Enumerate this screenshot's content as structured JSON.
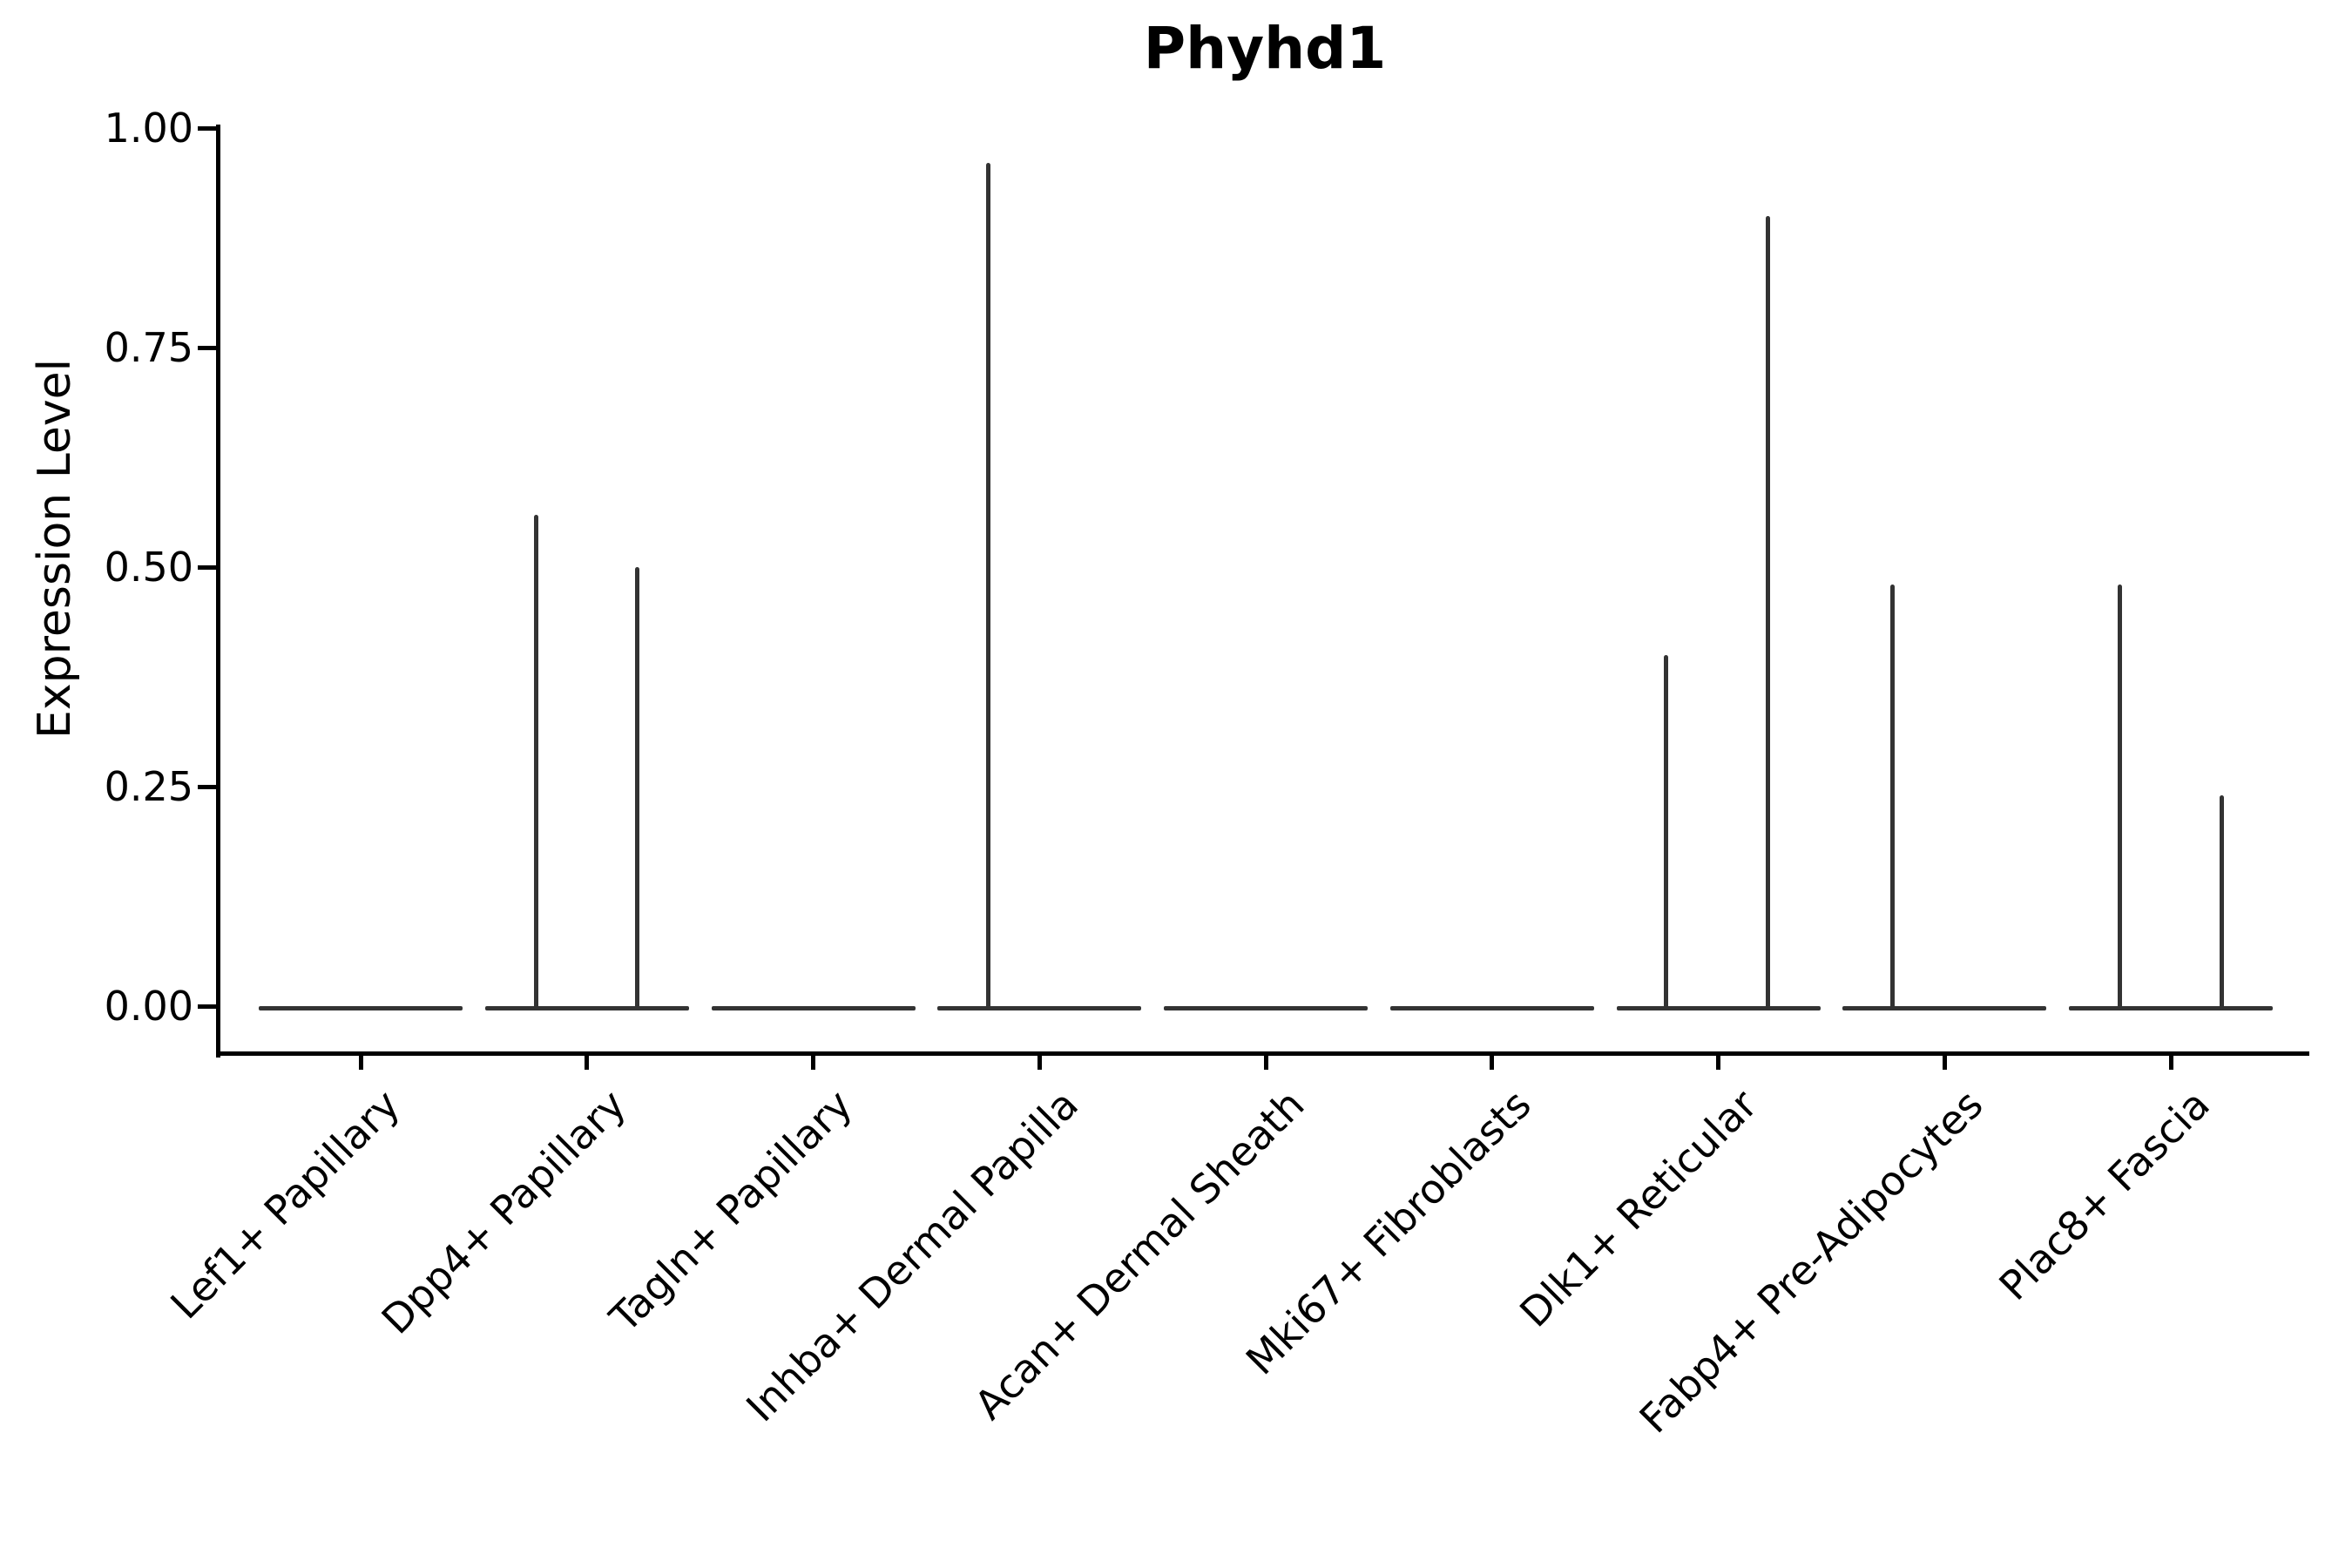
{
  "chart_data": {
    "type": "violin",
    "title": "Phyhd1",
    "xlabel": "",
    "ylabel": "Expression Level",
    "ylim": [
      0.0,
      1.0
    ],
    "ytick_values": [
      0.0,
      0.25,
      0.5,
      0.75,
      1.0
    ],
    "ytick_labels": [
      "0.00",
      "0.25",
      "0.50",
      "0.75",
      "1.00"
    ],
    "grid": false,
    "legend": "none",
    "violin_line_color": "#333333",
    "axis_color": "#000000",
    "violin_half_width_units": 0.45,
    "categories": [
      "Lef1+ Papillary",
      "Dpp4+ Papillary",
      "Tagln+ Papillary",
      "Inhba+ Dermal Papilla",
      "Acan+ Dermal Sheath",
      "Mki67+ Fibroblasts",
      "Dlk1+ Reticular",
      "Fabp4+ Pre-Adipocytes",
      "Plac8+ Fascia"
    ],
    "violins": [
      {
        "category": "Lef1+ Papillary",
        "baseline_value": 0.0,
        "spikes": []
      },
      {
        "category": "Dpp4+ Papillary",
        "baseline_value": 0.0,
        "spikes": [
          {
            "offset_units": -0.223,
            "value": 0.56
          },
          {
            "offset_units": 0.223,
            "value": 0.5
          }
        ]
      },
      {
        "category": "Tagln+ Papillary",
        "baseline_value": 0.0,
        "spikes": []
      },
      {
        "category": "Inhba+ Dermal Papilla",
        "baseline_value": 0.0,
        "spikes": [
          {
            "offset_units": -0.227,
            "value": 0.96
          }
        ]
      },
      {
        "category": "Acan+ Dermal Sheath",
        "baseline_value": 0.0,
        "spikes": []
      },
      {
        "category": "Mki67+ Fibroblasts",
        "baseline_value": 0.0,
        "spikes": []
      },
      {
        "category": "Dlk1+ Reticular",
        "baseline_value": 0.0,
        "spikes": [
          {
            "offset_units": -0.231,
            "value": 0.4
          },
          {
            "offset_units": 0.221,
            "value": 0.9
          }
        ]
      },
      {
        "category": "Fabp4+ Pre-Adipocytes",
        "baseline_value": 0.0,
        "spikes": [
          {
            "offset_units": -0.229,
            "value": 0.48
          }
        ]
      },
      {
        "category": "Plac8+ Fascia",
        "baseline_value": 0.0,
        "spikes": [
          {
            "offset_units": -0.227,
            "value": 0.48
          },
          {
            "offset_units": 0.227,
            "value": 0.24
          }
        ]
      }
    ]
  }
}
